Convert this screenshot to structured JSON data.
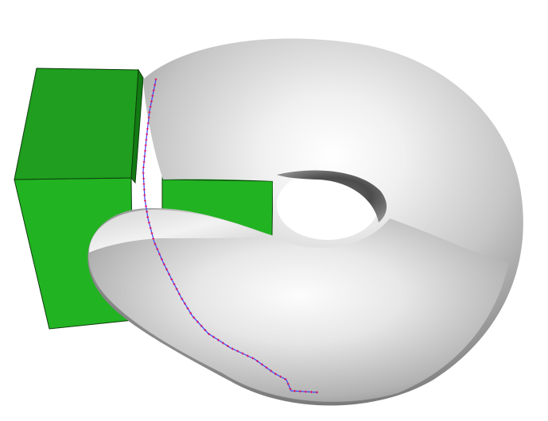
{
  "scene": {
    "description_visible_text": [],
    "colors": {
      "background": "#ffffff",
      "box_front": "#22b322",
      "box_top": "#1f9e1f",
      "box_side": "#137a13",
      "box_edge": "#0d3f0d",
      "torus_light": "#ffffff",
      "torus_mid": "#c8c8c8",
      "torus_dark": "#3a3a3a",
      "path_line": "#3a44ff",
      "path_markers": "#e0145a"
    },
    "objects": [
      "green-box-left",
      "green-box-right",
      "torus",
      "geodesic-path"
    ]
  }
}
